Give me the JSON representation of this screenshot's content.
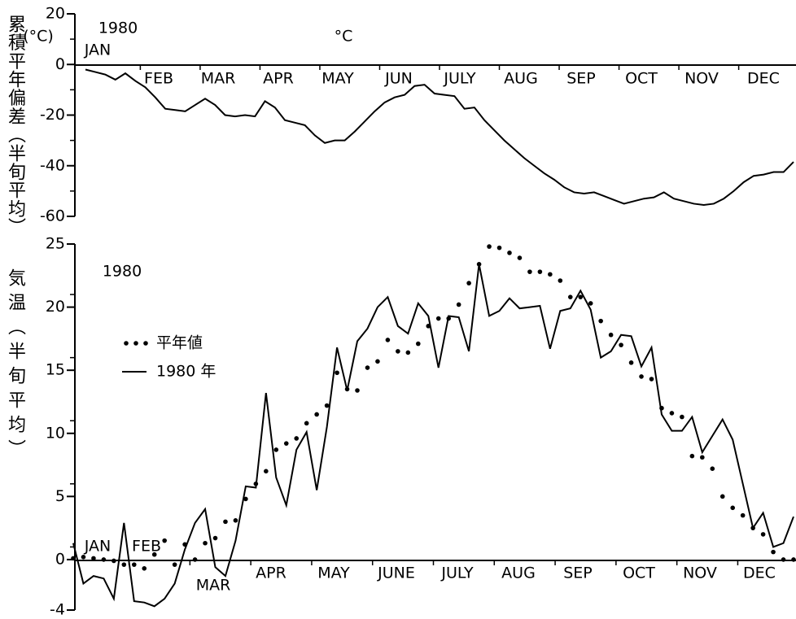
{
  "chart_data": [
    {
      "type": "line",
      "title": "1980",
      "y_label": "累積平年偏差（半旬平均）",
      "y_unit": "(°C)",
      "x_labels": [
        "JAN",
        "FEB",
        "MAR",
        "APR",
        "MAY",
        "JUN",
        "JULY",
        "AUG",
        "SEP",
        "OCT",
        "NOV",
        "DEC"
      ],
      "ylim": [
        -60,
        20
      ],
      "yticks": [
        20,
        0,
        -20,
        -40,
        -60
      ],
      "color": "#000000",
      "series": [
        {
          "style": "line",
          "color": "#000000",
          "values": [
            -2,
            -3,
            -4,
            -6,
            -3.5,
            -6.5,
            -9,
            -13,
            -17.5,
            -18,
            -18.5,
            -16,
            -13.5,
            -16,
            -20,
            -20.5,
            -20,
            -20.5,
            -14.5,
            -17,
            -22,
            -23,
            -24,
            -28,
            -31,
            -30,
            -30,
            -26.5,
            -22.5,
            -18.5,
            -15,
            -13,
            -12,
            -8.5,
            -8,
            -11.5,
            -12,
            -12.5,
            -17.5,
            -17,
            -22,
            -26,
            -30,
            -33.5,
            -37,
            -40,
            -43,
            -45.5,
            -48.5,
            -50.5,
            -51,
            -50.5,
            -52,
            -53.5,
            -55,
            -54,
            -53,
            -52.5,
            -50.5,
            -53,
            -54,
            -55,
            -55.5,
            -55,
            -53,
            -50,
            -46.5,
            -44,
            -43.5,
            -42.5,
            -42.5,
            -38.5
          ]
        }
      ]
    },
    {
      "type": "line",
      "title": "1980",
      "y_label": "気温（半旬平均）",
      "y_unit": "°C",
      "x_labels": [
        "JAN",
        "FEB",
        "MAR",
        "APR",
        "MAY",
        "JUNE",
        "JULY",
        "AUG",
        "SEP",
        "OCT",
        "NOV",
        "DEC"
      ],
      "ylim": [
        -4,
        25
      ],
      "yticks": [
        25,
        20,
        15,
        10,
        5,
        0,
        -4
      ],
      "series": [
        {
          "name": "平年値",
          "style": "dots",
          "color": "#000000",
          "values": [
            0.1,
            0.2,
            0.1,
            0.0,
            -0.1,
            -0.4,
            -0.4,
            -0.7,
            0.4,
            1.5,
            -0.4,
            1.2,
            0.0,
            1.3,
            1.7,
            3.0,
            3.1,
            4.8,
            6.0,
            7.0,
            8.7,
            9.2,
            9.6,
            10.8,
            11.5,
            12.2,
            14.8,
            13.5,
            13.4,
            15.2,
            15.7,
            17.4,
            16.5,
            16.4,
            17.1,
            18.5,
            19.1,
            19.1,
            20.2,
            21.9,
            23.4,
            24.8,
            24.7,
            24.3,
            23.9,
            22.8,
            22.8,
            22.6,
            22.1,
            20.8,
            20.8,
            20.3,
            18.9,
            17.8,
            17.0,
            15.6,
            14.5,
            14.3,
            12.0,
            11.6,
            11.3,
            8.2,
            8.1,
            7.2,
            5.0,
            4.1,
            3.5,
            2.5,
            2.0,
            0.6,
            0.0,
            0.0
          ]
        },
        {
          "name": "1980 年",
          "style": "line",
          "color": "#000000",
          "values": [
            1.3,
            -1.9,
            -1.3,
            -1.5,
            -3.1,
            2.9,
            -3.3,
            -3.4,
            -3.7,
            -3.1,
            -1.9,
            0.8,
            2.9,
            4.0,
            -0.6,
            -1.3,
            1.5,
            5.8,
            5.7,
            13.2,
            6.5,
            4.3,
            8.7,
            10.1,
            5.5,
            10.5,
            16.8,
            13.4,
            17.3,
            18.3,
            20.0,
            20.8,
            18.5,
            17.9,
            20.3,
            19.3,
            15.2,
            19.3,
            19.2,
            16.5,
            23.4,
            19.3,
            19.7,
            20.7,
            19.9,
            20.0,
            20.1,
            16.7,
            19.7,
            19.9,
            21.3,
            19.8,
            16.0,
            16.5,
            17.8,
            17.7,
            15.3,
            16.8,
            11.5,
            10.2,
            10.2,
            11.3,
            8.5,
            9.8,
            11.1,
            9.5,
            6.0,
            2.5,
            3.7,
            1.0,
            1.3,
            3.4
          ]
        }
      ]
    }
  ]
}
